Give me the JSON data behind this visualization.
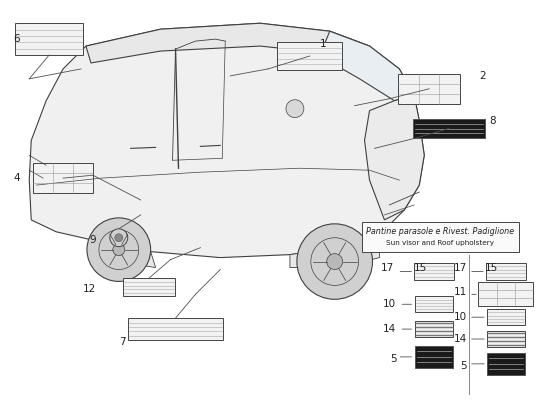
{
  "bg_color": "#ffffff",
  "section_title_it": "Pantine parasole e Rivest. Padiglione",
  "section_title_en": "Sun visor and Roof upholstery",
  "line_color": "#404040",
  "label_color": "#222222",
  "dark_label_bg": "#1a1a1a",
  "car_body_color": "#f0f0f0",
  "car_roof_color": "#e8e8e8",
  "car_glass_color": "#e8eef2",
  "car_hood_color": "#ebebeb",
  "wheel_color": "#d0d0d0"
}
